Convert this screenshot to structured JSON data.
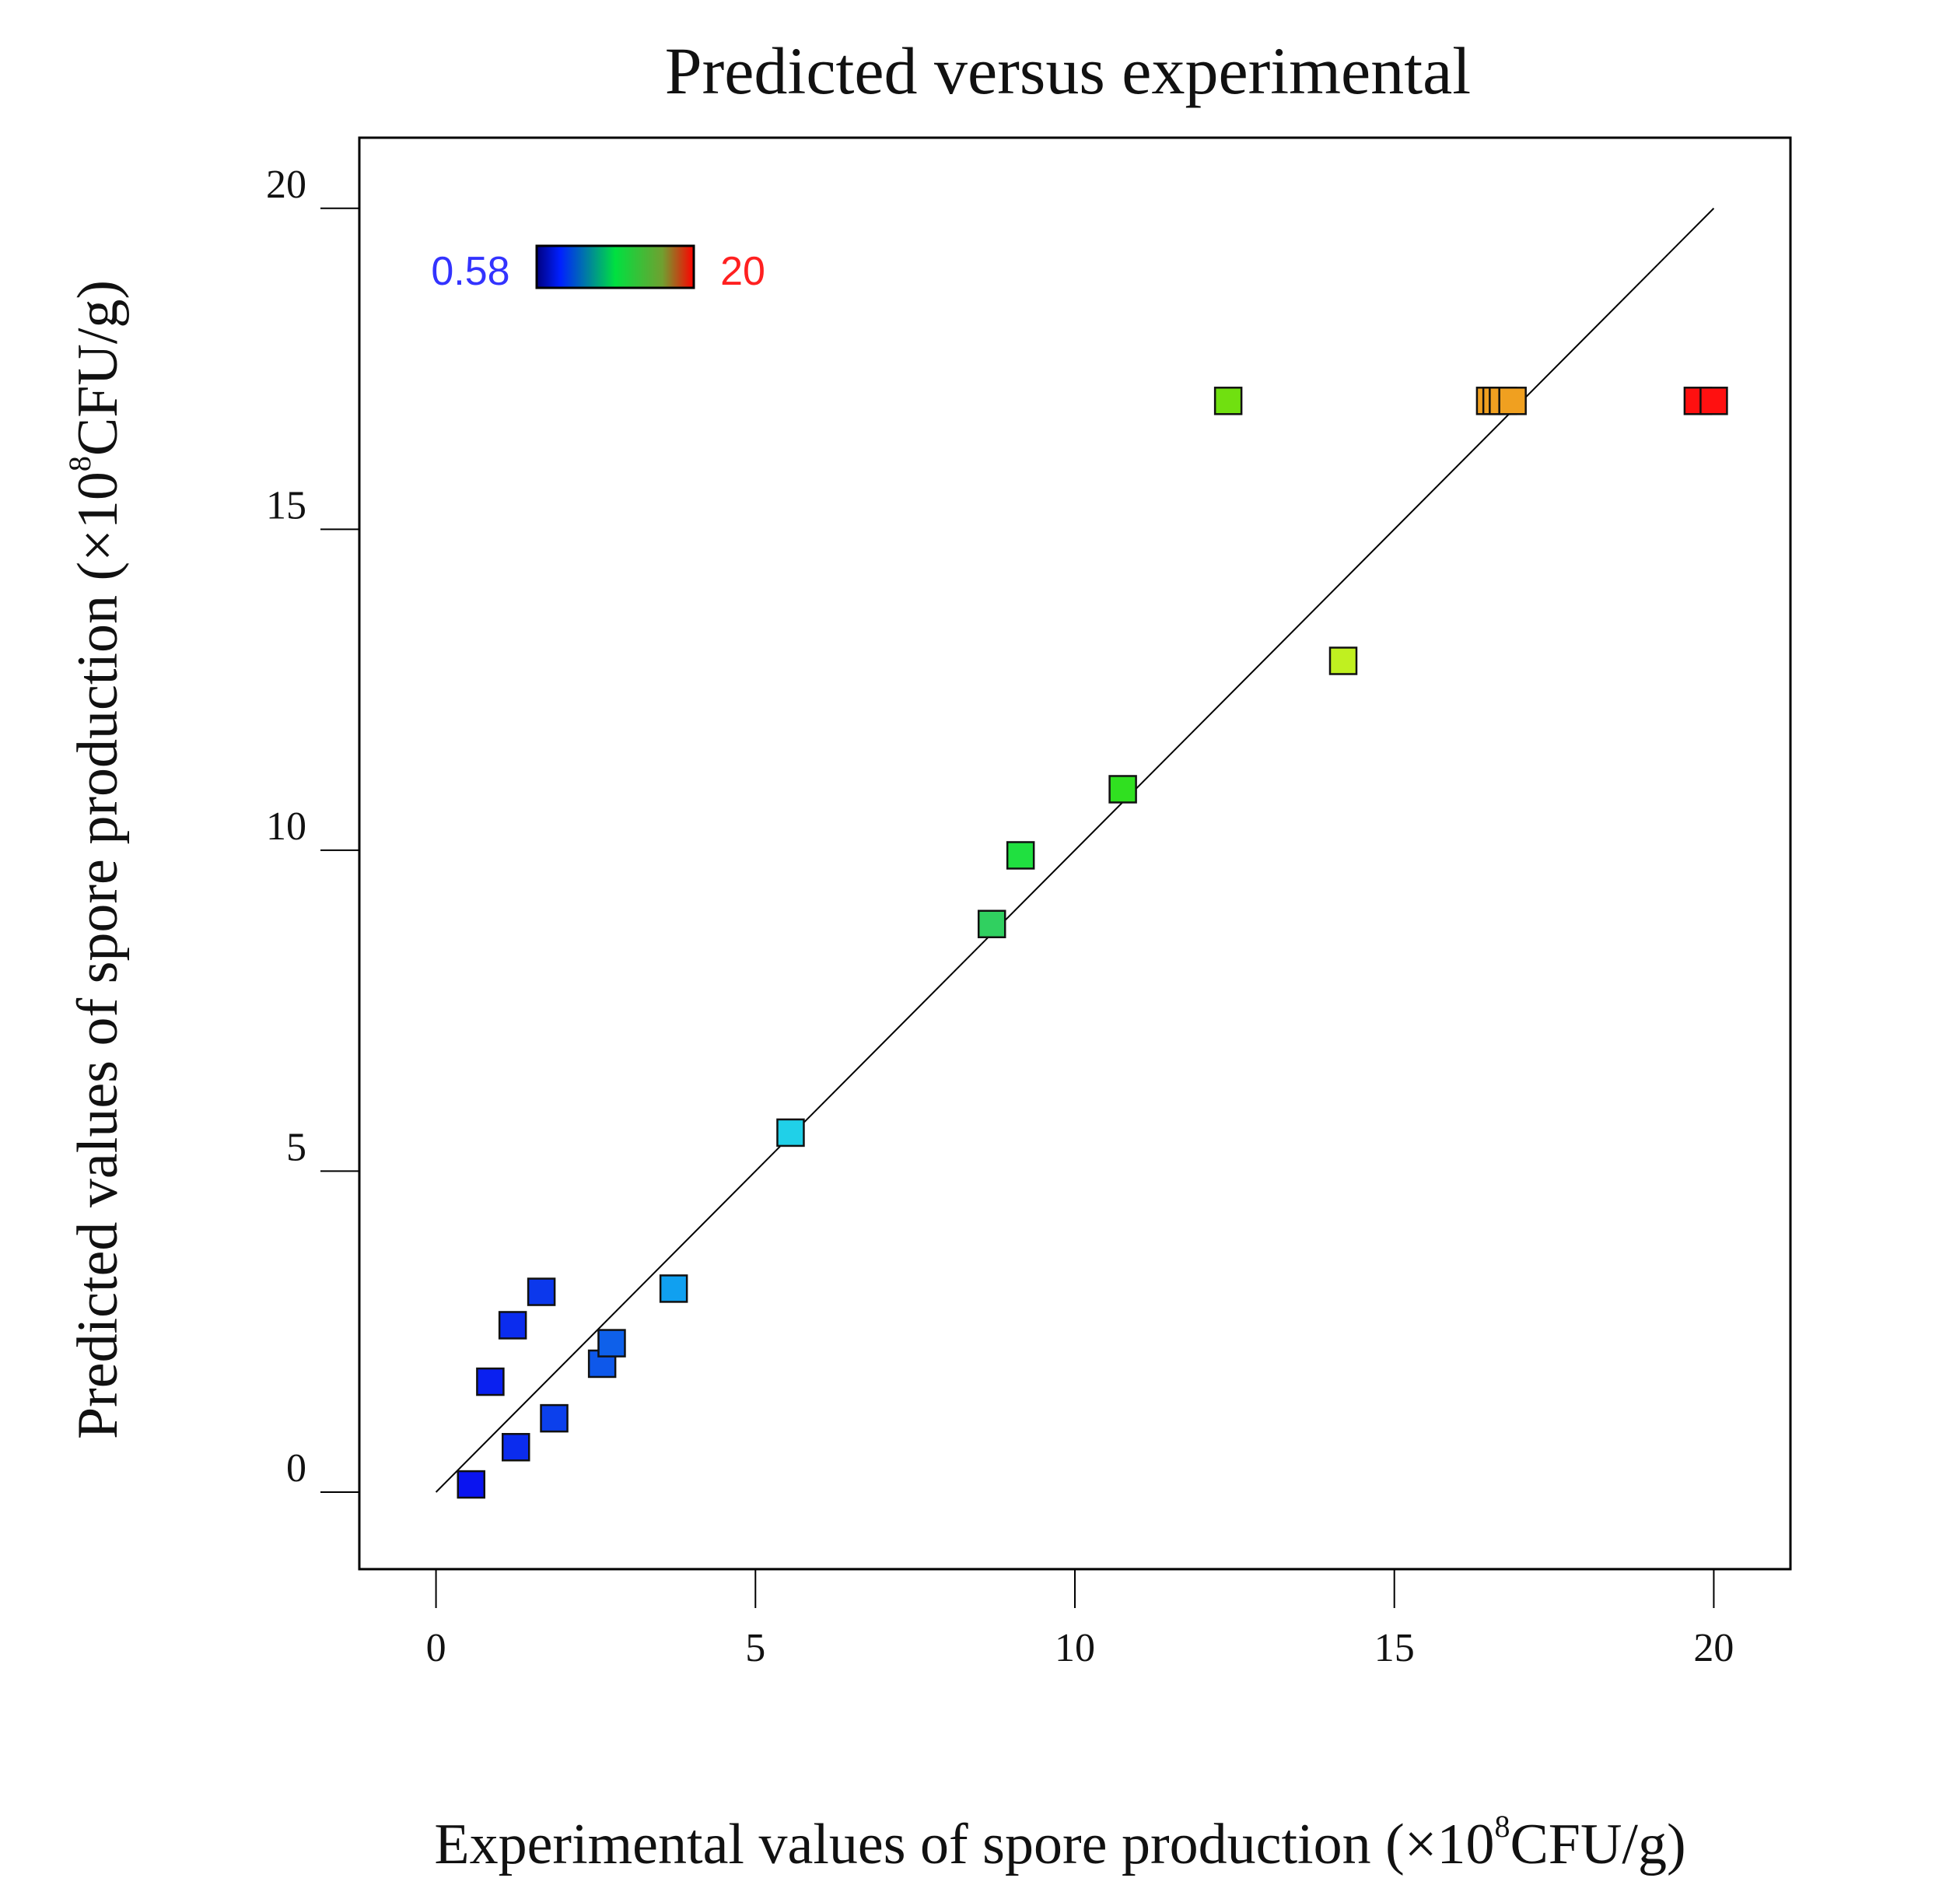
{
  "chart_data": {
    "type": "scatter",
    "title": "Predicted versus experimental",
    "xlabel": "Experimental values of spore production (×10",
    "ylabel": "Predicted values of spore production (×10",
    "label_exponent": "8",
    "label_unit": "CFU/g)",
    "xlim": [
      -1.2,
      21.2
    ],
    "ylim": [
      -1.2,
      21.1
    ],
    "x_ticks": [
      0,
      5,
      10,
      15,
      20
    ],
    "y_ticks": [
      0,
      5,
      10,
      15,
      20
    ],
    "x_tick_labels": [
      "0",
      "5",
      "10",
      "15",
      "20"
    ],
    "y_tick_labels": [
      "0",
      "5",
      "10",
      "15",
      "20"
    ],
    "reference_line": {
      "x": [
        0,
        20
      ],
      "y": [
        0,
        20
      ]
    },
    "colorbar": {
      "min_label": "0.58",
      "max_label": "20",
      "min_value": 0.58,
      "max_value": 20,
      "min_color": "#3333ff",
      "max_color": "#ff2020"
    },
    "points": [
      {
        "x": 0.55,
        "y": 0.12,
        "color": "#0a14f0"
      },
      {
        "x": 0.85,
        "y": 1.72,
        "color": "#0a20f0"
      },
      {
        "x": 1.2,
        "y": 2.6,
        "color": "#0b2cee"
      },
      {
        "x": 1.25,
        "y": 0.7,
        "color": "#0b2cee"
      },
      {
        "x": 1.65,
        "y": 3.12,
        "color": "#0c38ec"
      },
      {
        "x": 1.85,
        "y": 1.15,
        "color": "#0c40ec"
      },
      {
        "x": 2.6,
        "y": 2.0,
        "color": "#0e58ea"
      },
      {
        "x": 2.75,
        "y": 2.32,
        "color": "#0e60ea"
      },
      {
        "x": 3.72,
        "y": 3.17,
        "color": "#10a0f0"
      },
      {
        "x": 5.55,
        "y": 5.6,
        "color": "#20d0e8"
      },
      {
        "x": 8.7,
        "y": 8.85,
        "color": "#30d060"
      },
      {
        "x": 9.15,
        "y": 9.92,
        "color": "#20e040"
      },
      {
        "x": 10.75,
        "y": 10.95,
        "color": "#30e020"
      },
      {
        "x": 12.4,
        "y": 17.0,
        "color": "#70e010"
      },
      {
        "x": 14.2,
        "y": 12.95,
        "color": "#c0f020"
      },
      {
        "x": 16.5,
        "y": 17.0,
        "color": "#f0a020"
      },
      {
        "x": 16.6,
        "y": 17.0,
        "color": "#f0a020"
      },
      {
        "x": 16.7,
        "y": 17.0,
        "color": "#f0a020"
      },
      {
        "x": 16.85,
        "y": 17.0,
        "color": "#f0a020"
      },
      {
        "x": 19.75,
        "y": 17.0,
        "color": "#ff1010"
      },
      {
        "x": 20.0,
        "y": 17.0,
        "color": "#ff1010"
      }
    ]
  }
}
